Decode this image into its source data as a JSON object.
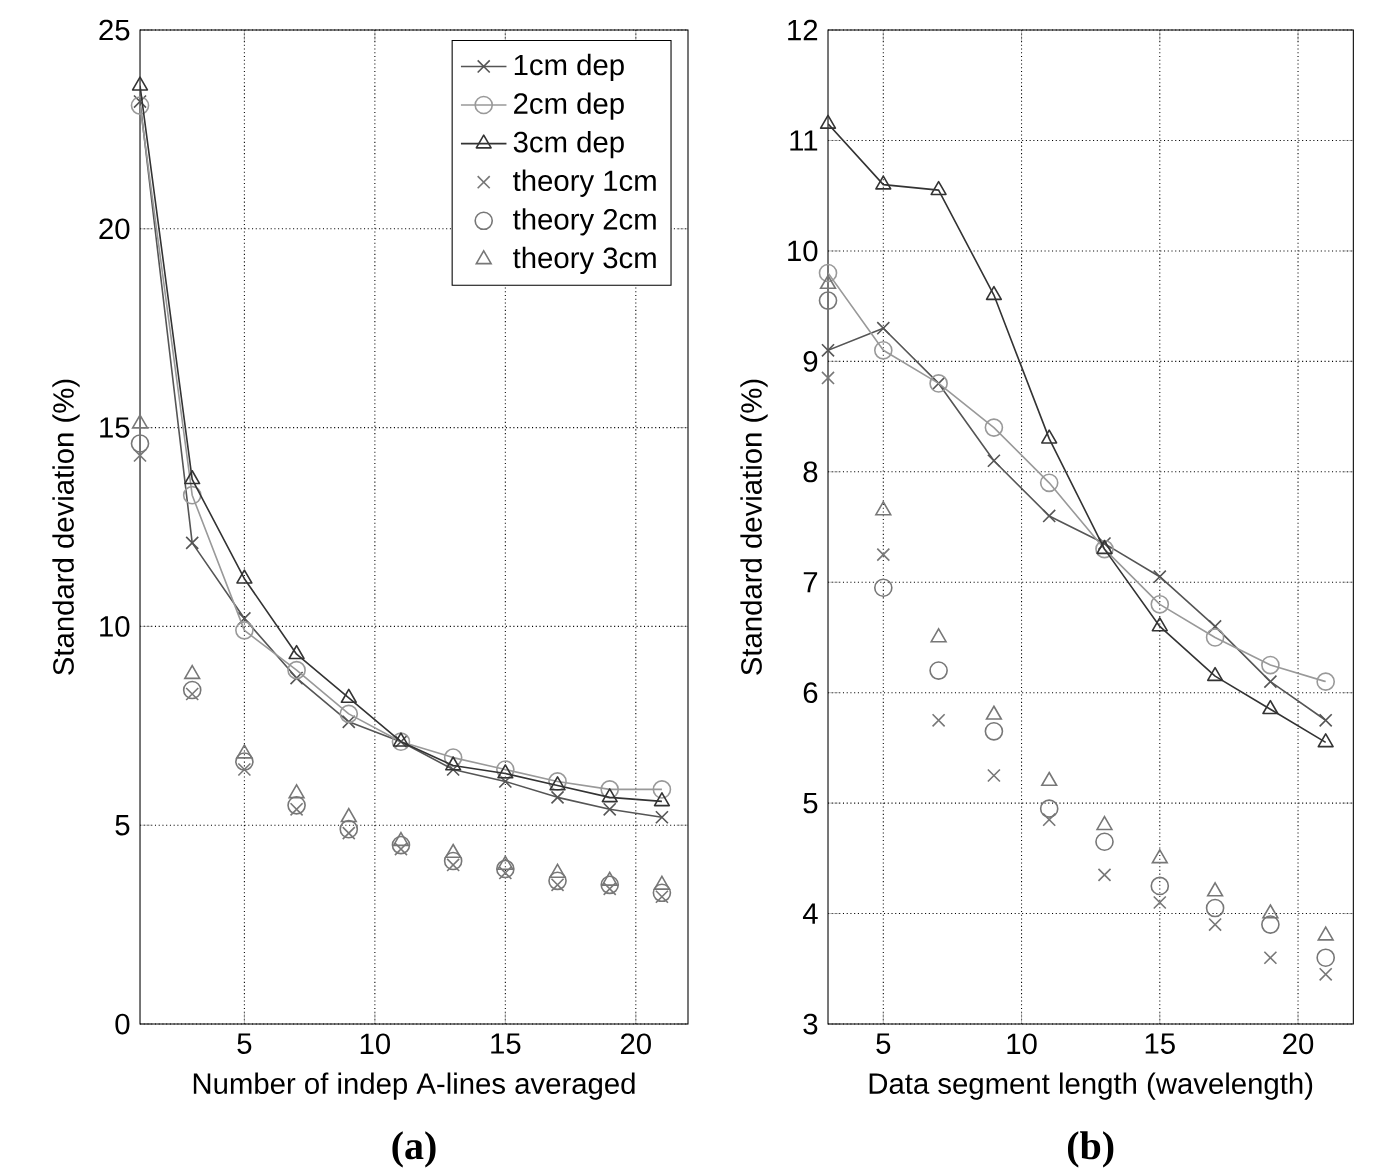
{
  "chart_data": [
    {
      "type": "line",
      "xlabel": "Number of indep A-lines averaged",
      "ylabel": "Standard deviation (%)",
      "annotations": [
        "(a)"
      ],
      "x": [
        1,
        3,
        5,
        7,
        9,
        11,
        13,
        15,
        17,
        19,
        21
      ],
      "xlim": [
        1,
        22
      ],
      "ylim": [
        0,
        25
      ],
      "xticks": [
        5,
        10,
        15,
        20
      ],
      "yticks": [
        0,
        5,
        10,
        15,
        20,
        25
      ],
      "grid": true,
      "legend": "top right",
      "line_style": "solid",
      "series": [
        {
          "name": "1cm dep",
          "marker": "cross",
          "color": "#555555",
          "values": [
            23.2,
            12.1,
            10.2,
            8.7,
            7.6,
            7.1,
            6.4,
            6.1,
            5.7,
            5.4,
            5.2
          ]
        },
        {
          "name": "2cm dep",
          "marker": "circle",
          "color": "#999999",
          "values": [
            23.1,
            13.3,
            9.9,
            8.9,
            7.8,
            7.1,
            6.7,
            6.4,
            6.1,
            5.9,
            5.9
          ]
        },
        {
          "name": "3cm dep",
          "marker": "triangle",
          "color": "#333333",
          "values": [
            23.6,
            13.7,
            11.2,
            9.3,
            8.2,
            7.1,
            6.5,
            6.3,
            6.0,
            5.7,
            5.6
          ]
        },
        {
          "name": "theory 1cm",
          "type": "scatter",
          "marker": "cross",
          "color": "#777777",
          "values": [
            14.3,
            8.3,
            6.4,
            5.4,
            4.8,
            4.4,
            4.0,
            3.8,
            3.5,
            3.4,
            3.2
          ]
        },
        {
          "name": "theory 2cm",
          "type": "scatter",
          "marker": "circle",
          "color": "#777777",
          "values": [
            14.6,
            8.4,
            6.6,
            5.5,
            4.9,
            4.5,
            4.1,
            3.9,
            3.6,
            3.5,
            3.3
          ]
        },
        {
          "name": "theory 3cm",
          "type": "scatter",
          "marker": "triangle",
          "color": "#777777",
          "values": [
            15.1,
            8.8,
            6.8,
            5.8,
            5.2,
            4.6,
            4.3,
            4.0,
            3.8,
            3.6,
            3.5
          ]
        }
      ]
    },
    {
      "type": "line",
      "xlabel": "Data segment length (wavelength)",
      "ylabel": "Standard deviation (%)",
      "annotations": [
        "(b)"
      ],
      "x": [
        3,
        5,
        7,
        9,
        11,
        13,
        15,
        17,
        19,
        21
      ],
      "xlim": [
        3,
        22
      ],
      "ylim": [
        3,
        12
      ],
      "xticks": [
        5,
        10,
        15,
        20
      ],
      "yticks": [
        3,
        4,
        5,
        6,
        7,
        8,
        9,
        10,
        11,
        12
      ],
      "grid": true,
      "line_style": "solid",
      "series": [
        {
          "marker": "cross",
          "color": "#555555",
          "values": [
            9.1,
            9.3,
            8.8,
            8.1,
            7.6,
            7.35,
            7.05,
            6.6,
            6.1,
            5.75
          ]
        },
        {
          "marker": "circle",
          "color": "#999999",
          "values": [
            9.8,
            9.1,
            8.8,
            8.4,
            7.9,
            7.3,
            6.8,
            6.5,
            6.25,
            6.1
          ]
        },
        {
          "marker": "triangle",
          "color": "#333333",
          "values": [
            11.15,
            10.6,
            10.55,
            9.6,
            8.3,
            7.3,
            6.6,
            6.15,
            5.85,
            5.55
          ]
        },
        {
          "type": "scatter",
          "marker": "cross",
          "color": "#777777",
          "values": [
            8.85,
            7.25,
            5.75,
            5.25,
            4.85,
            4.35,
            4.1,
            3.9,
            3.6,
            3.45
          ]
        },
        {
          "type": "scatter",
          "marker": "circle",
          "color": "#777777",
          "values": [
            9.55,
            6.95,
            6.2,
            5.65,
            4.95,
            4.65,
            4.25,
            4.05,
            3.9,
            3.6
          ]
        },
        {
          "type": "scatter",
          "marker": "triangle",
          "color": "#777777",
          "values": [
            9.7,
            7.65,
            6.5,
            5.8,
            5.2,
            4.8,
            4.5,
            4.2,
            4.0,
            3.8
          ]
        }
      ]
    }
  ]
}
